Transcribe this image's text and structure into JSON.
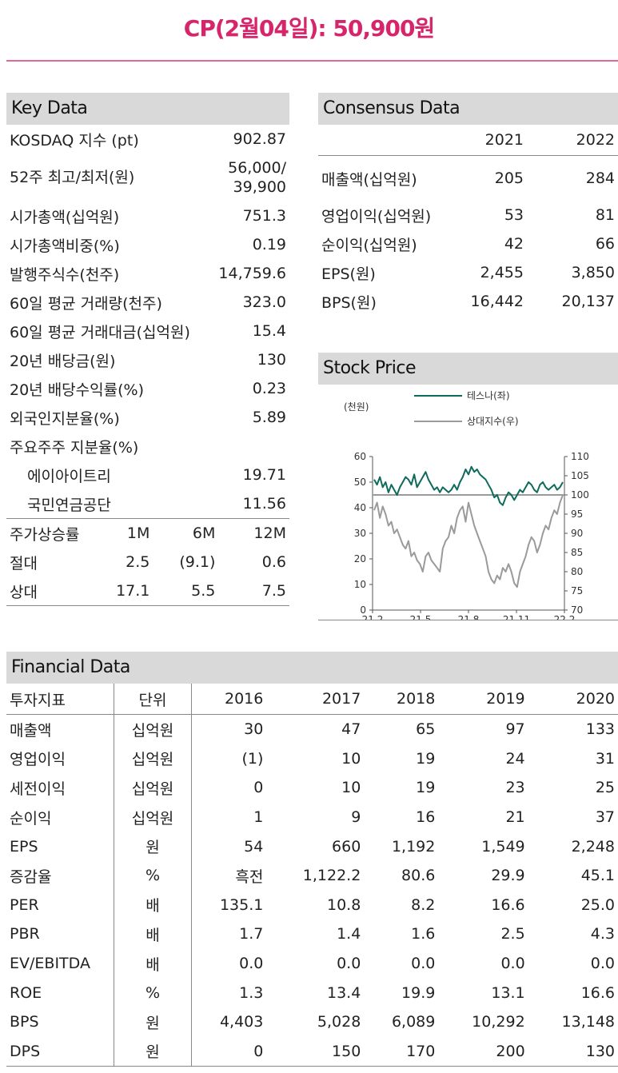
{
  "title": "CP(2월04일): 50,900원",
  "key_data": {
    "heading": "Key Data",
    "rows": [
      {
        "label": "KOSDAQ 지수 (pt)",
        "value": "902.87"
      },
      {
        "label": "52주 최고/최저(원)",
        "value_line1": "56,000/",
        "value_line2": "39,900"
      },
      {
        "label": "시가총액(십억원)",
        "value": "751.3"
      },
      {
        "label": "시가총액비중(%)",
        "value": "0.19"
      },
      {
        "label": "발행주식수(천주)",
        "value": "14,759.6"
      },
      {
        "label": "60일 평균 거래량(천주)",
        "value": "323.0"
      },
      {
        "label": "60일 평균 거래대금(십억원)",
        "value": "15.4"
      },
      {
        "label": "20년 배당금(원)",
        "value": "130"
      },
      {
        "label": "20년 배당수익률(%)",
        "value": "0.23"
      },
      {
        "label": "외국인지분율(%)",
        "value": "5.89"
      },
      {
        "label": "주요주주 지분율(%)",
        "value": ""
      },
      {
        "label": "에이아이트리",
        "value": "19.71"
      },
      {
        "label": "국민연금공단",
        "value": "11.56"
      }
    ],
    "perf_header": {
      "label": "주가상승률",
      "c1": "1M",
      "c2": "6M",
      "c3": "12M"
    },
    "perf_rows": [
      {
        "label": "절대",
        "c1": "2.5",
        "c2": "(9.1)",
        "c3": "0.6"
      },
      {
        "label": "상대",
        "c1": "17.1",
        "c2": "5.5",
        "c3": "7.5"
      }
    ]
  },
  "consensus": {
    "heading": "Consensus Data",
    "years": [
      "2021",
      "2022"
    ],
    "rows": [
      {
        "label": "매출액(십억원)",
        "y1": "205",
        "y2": "284"
      },
      {
        "label": "영업이익(십억원)",
        "y1": "53",
        "y2": "81"
      },
      {
        "label": "순이익(십억원)",
        "y1": "42",
        "y2": "66"
      },
      {
        "label": "EPS(원)",
        "y1": "2,455",
        "y2": "3,850"
      },
      {
        "label": "BPS(원)",
        "y1": "16,442",
        "y2": "20,137"
      }
    ]
  },
  "stock_price": {
    "heading": "Stock Price",
    "colors": {
      "stock": "#0e6b5c",
      "index": "#9a9a9a",
      "baseline": "#9a9a9a"
    }
  },
  "chart_data": {
    "type": "line",
    "left_axis_label": "(천원)",
    "left_ylim": [
      0,
      60
    ],
    "left_ticks": [
      "0",
      "10",
      "20",
      "30",
      "40",
      "50",
      "60"
    ],
    "right_ylim": [
      70,
      110
    ],
    "right_ticks": [
      "70",
      "75",
      "80",
      "85",
      "90",
      "95",
      "100",
      "105",
      "110"
    ],
    "x_ticks": [
      "21.2",
      "21.5",
      "21.8",
      "21.11",
      "22.2"
    ],
    "baseline_right": 100,
    "series": [
      {
        "name": "테스나(좌)",
        "axis": "left",
        "values": [
          51,
          49,
          52,
          48,
          50,
          46,
          49,
          47,
          45,
          48,
          50,
          52,
          51,
          49,
          53,
          48,
          50,
          52,
          54,
          51,
          49,
          47,
          48,
          46,
          48,
          47,
          46,
          47,
          49,
          47,
          50,
          52,
          55,
          53,
          56,
          54,
          55,
          53,
          52,
          51,
          49,
          47,
          44,
          45,
          42,
          41,
          44,
          46,
          45,
          43,
          45,
          47,
          46,
          48,
          50,
          49,
          47,
          46,
          49,
          50,
          48,
          47,
          48,
          49,
          47,
          48,
          50
        ]
      },
      {
        "name": "상대지수(우)",
        "axis": "right",
        "values": [
          96,
          98,
          94,
          97,
          95,
          92,
          93,
          90,
          91,
          89,
          87,
          86,
          88,
          84,
          85,
          83,
          82,
          80,
          84,
          85,
          83,
          82,
          81,
          80,
          86,
          88,
          89,
          92,
          90,
          94,
          96,
          97,
          93,
          98,
          95,
          92,
          90,
          88,
          86,
          84,
          80,
          78,
          77,
          79,
          78,
          81,
          80,
          82,
          80,
          77,
          76,
          80,
          82,
          84,
          87,
          89,
          88,
          85,
          87,
          90,
          92,
          91,
          94,
          96,
          95,
          98,
          100
        ]
      }
    ]
  },
  "financial": {
    "heading": "Financial Data",
    "header": {
      "label": "투자지표",
      "unit": "단위",
      "years": [
        "2016",
        "2017",
        "2018",
        "2019",
        "2020"
      ]
    },
    "rows": [
      {
        "label": "매출액",
        "unit": "십억원",
        "v": [
          "30",
          "47",
          "65",
          "97",
          "133"
        ]
      },
      {
        "label": "영업이익",
        "unit": "십억원",
        "v": [
          "(1)",
          "10",
          "19",
          "24",
          "31"
        ]
      },
      {
        "label": "세전이익",
        "unit": "십억원",
        "v": [
          "0",
          "10",
          "19",
          "23",
          "25"
        ]
      },
      {
        "label": "순이익",
        "unit": "십억원",
        "v": [
          "1",
          "9",
          "16",
          "21",
          "37"
        ]
      },
      {
        "label": "EPS",
        "unit": "원",
        "v": [
          "54",
          "660",
          "1,192",
          "1,549",
          "2,248"
        ]
      },
      {
        "label": "증감율",
        "unit": "%",
        "v": [
          "흑전",
          "1,122.2",
          "80.6",
          "29.9",
          "45.1"
        ]
      },
      {
        "label": "PER",
        "unit": "배",
        "v": [
          "135.1",
          "10.8",
          "8.2",
          "16.6",
          "25.0"
        ]
      },
      {
        "label": "PBR",
        "unit": "배",
        "v": [
          "1.7",
          "1.4",
          "1.6",
          "2.5",
          "4.3"
        ]
      },
      {
        "label": "EV/EBITDA",
        "unit": "배",
        "v": [
          "0.0",
          "0.0",
          "0.0",
          "0.0",
          "0.0"
        ]
      },
      {
        "label": "ROE",
        "unit": "%",
        "v": [
          "1.3",
          "13.4",
          "19.9",
          "13.1",
          "16.6"
        ]
      },
      {
        "label": "BPS",
        "unit": "원",
        "v": [
          "4,403",
          "5,028",
          "6,089",
          "10,292",
          "13,148"
        ]
      },
      {
        "label": "DPS",
        "unit": "원",
        "v": [
          "0",
          "150",
          "170",
          "200",
          "130"
        ]
      }
    ]
  }
}
